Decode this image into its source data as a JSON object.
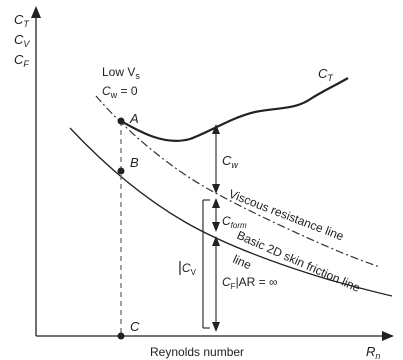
{
  "axes": {
    "y_label_lines": [
      "C",
      "C",
      "C"
    ],
    "y_label_subs": [
      "T",
      "V",
      "F"
    ],
    "x_label": "Reynolds number",
    "x_end_label": "R",
    "x_end_sub": "n"
  },
  "annotations": {
    "low_vs": "Low V",
    "low_vs_sub": "s",
    "cw_zero_c": "C",
    "cw_zero_sub": "w",
    "cw_zero_val": " = 0",
    "ct_curve_c": "C",
    "ct_curve_sub": "T",
    "point_a": "A",
    "point_b": "B",
    "point_c": "C",
    "cw_c": "C",
    "cw_sub": "w",
    "cform_c": "C",
    "cform_sub": "form",
    "cv_c": "C",
    "cv_sub": "V",
    "cf_c": "C",
    "cf_sub": "F",
    "cf_tail": "|AR = ∞",
    "viscous_line": "Viscous resistance line",
    "skin_line_1": "Basic 2D skin friction line",
    "skin_line_2": "line"
  },
  "colors": {
    "ink": "#222222",
    "dashed": "#555555",
    "background": "#ffffff"
  }
}
